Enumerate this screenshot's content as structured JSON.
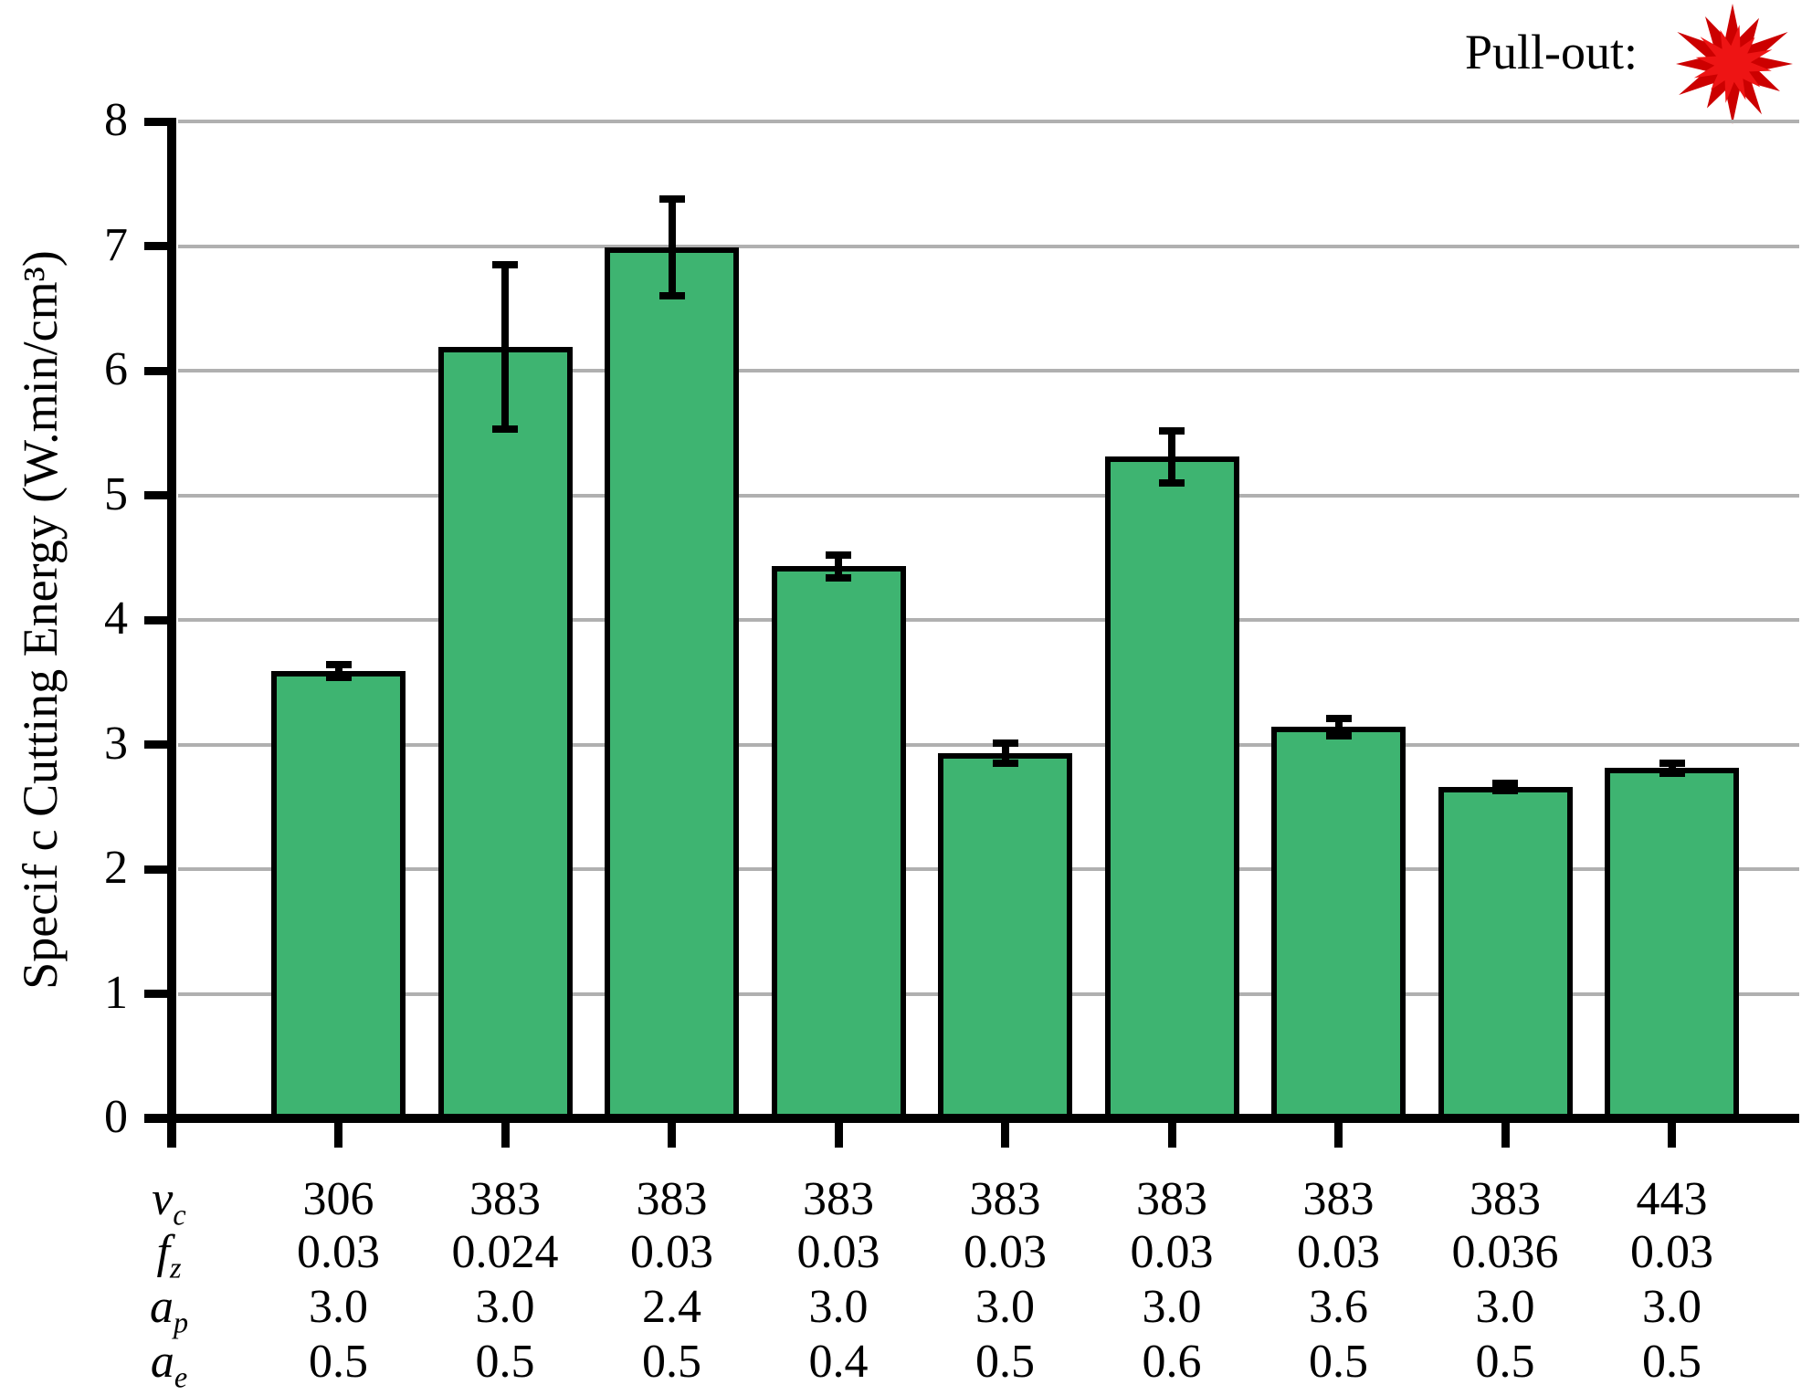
{
  "legend": {
    "label": "Pull-out:"
  },
  "y_axis": {
    "title": "Specif c Cutting Energy (W.min/cm³)"
  },
  "chart_data": {
    "type": "bar",
    "title": "",
    "xlabel": "",
    "ylabel": "Specif c Cutting Energy (W.min/cm³)",
    "ylim": [
      0,
      8
    ],
    "yticks": [
      "0",
      "1",
      "2",
      "3",
      "4",
      "5",
      "6",
      "7",
      "8"
    ],
    "grid": "horizontal",
    "legend_label": "Pull-out:",
    "legend_position": "top-right",
    "values": [
      3.59,
      6.19,
      6.99,
      4.43,
      2.93,
      5.31,
      3.14,
      2.66,
      2.81
    ],
    "errors": [
      0.05,
      0.66,
      0.39,
      0.09,
      0.08,
      0.21,
      0.07,
      0.03,
      0.04
    ],
    "param_rows": [
      {
        "label_base": "v",
        "label_sub": "c",
        "values": [
          "306",
          "383",
          "383",
          "383",
          "383",
          "383",
          "383",
          "383",
          "443"
        ]
      },
      {
        "label_base": "f",
        "label_sub": "z",
        "values": [
          "0.03",
          "0.024",
          "0.03",
          "0.03",
          "0.03",
          "0.03",
          "0.03",
          "0.036",
          "0.03"
        ]
      },
      {
        "label_base": "a",
        "label_sub": "p",
        "values": [
          "3.0",
          "3.0",
          "2.4",
          "3.0",
          "3.0",
          "3.0",
          "3.6",
          "3.0",
          "3.0"
        ]
      },
      {
        "label_base": "a",
        "label_sub": "e",
        "values": [
          "0.5",
          "0.5",
          "0.5",
          "0.4",
          "0.5",
          "0.6",
          "0.5",
          "0.5",
          "0.5"
        ]
      }
    ],
    "colors": {
      "bar_fill": "#3EB471",
      "bar_outline": "#000000",
      "gridline": "#B0B0B0",
      "axis": "#000000",
      "error_bar": "#000000",
      "star_outer": "#CC0000",
      "star_inner": "#EE1414"
    }
  }
}
